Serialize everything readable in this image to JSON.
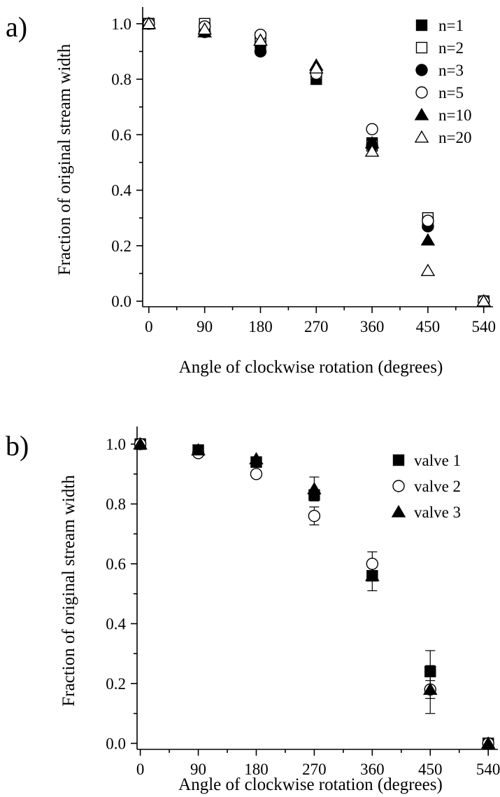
{
  "chart_data": [
    {
      "type": "scatter",
      "panel_label": "a)",
      "xlabel": "Angle of clockwise rotation (degrees)",
      "ylabel": "Fraction of original stream width",
      "x_ticks": [
        "0",
        "90",
        "180",
        "270",
        "360",
        "450",
        "540"
      ],
      "y_ticks": [
        "0.0",
        "0.2",
        "0.4",
        "0.6",
        "0.8",
        "1.0"
      ],
      "xlim": [
        -10,
        555
      ],
      "ylim": [
        -0.02,
        1.04
      ],
      "legend_position": "top-right",
      "grid": false,
      "x": [
        0,
        90,
        180,
        270,
        360,
        450,
        540
      ],
      "series": [
        {
          "name": "n=1",
          "marker": "square-filled",
          "values": [
            1.0,
            0.98,
            0.93,
            0.8,
            0.57,
            0.28,
            0.0
          ]
        },
        {
          "name": "n=2",
          "marker": "square-open",
          "values": [
            1.0,
            1.0,
            0.95,
            0.82,
            0.56,
            0.3,
            0.0
          ]
        },
        {
          "name": "n=3",
          "marker": "circle-filled",
          "values": [
            1.0,
            0.97,
            0.9,
            0.83,
            0.56,
            0.27,
            0.0
          ]
        },
        {
          "name": "n=5",
          "marker": "circle-open",
          "values": [
            1.0,
            0.99,
            0.96,
            0.82,
            0.62,
            0.29,
            0.0
          ]
        },
        {
          "name": "n=10",
          "marker": "triangle-filled",
          "values": [
            1.0,
            0.97,
            0.94,
            0.85,
            0.57,
            0.22,
            0.0
          ]
        },
        {
          "name": "n=20",
          "marker": "triangle-open",
          "values": [
            1.0,
            0.98,
            0.94,
            0.84,
            0.54,
            0.11,
            0.0
          ]
        }
      ]
    },
    {
      "type": "scatter",
      "panel_label": "b)",
      "xlabel": "Angle of clockwise rotation (degrees)",
      "ylabel": "Fraction of original stream width",
      "x_ticks": [
        "0",
        "90",
        "180",
        "270",
        "360",
        "450",
        "540"
      ],
      "y_ticks": [
        "0.0",
        "0.2",
        "0.4",
        "0.6",
        "0.8",
        "1.0"
      ],
      "xlim": [
        -5,
        555
      ],
      "ylim": [
        -0.02,
        1.04
      ],
      "legend_position": "top-right",
      "grid": false,
      "x": [
        0,
        90,
        180,
        270,
        360,
        450,
        540
      ],
      "series": [
        {
          "name": "valve 1",
          "marker": "square-filled",
          "values": [
            1.0,
            0.98,
            0.94,
            0.83,
            0.56,
            0.24,
            0.0
          ],
          "errors": [
            0,
            0,
            0,
            0,
            0.05,
            0.07,
            0
          ]
        },
        {
          "name": "valve 2",
          "marker": "circle-open",
          "values": [
            1.0,
            0.97,
            0.9,
            0.76,
            0.6,
            0.18,
            0.0
          ],
          "errors": [
            0,
            0,
            0,
            0.03,
            0.04,
            0.03,
            0
          ]
        },
        {
          "name": "valve 3",
          "marker": "triangle-filled",
          "values": [
            1.0,
            0.98,
            0.95,
            0.85,
            0.56,
            0.18,
            0.0
          ],
          "errors": [
            0,
            0,
            0,
            0.04,
            0,
            0.08,
            0
          ]
        }
      ]
    }
  ]
}
